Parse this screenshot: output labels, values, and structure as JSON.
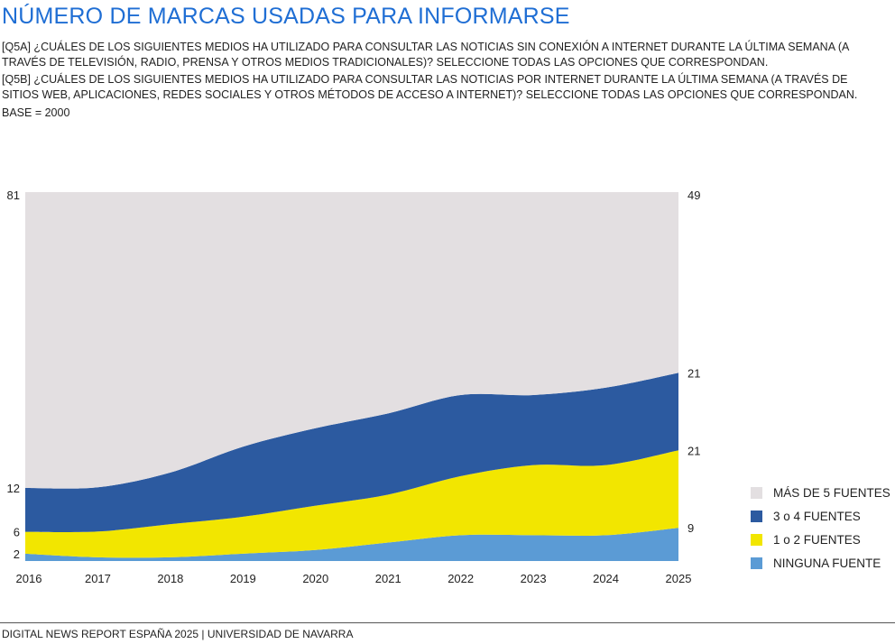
{
  "title": "NÚMERO DE MARCAS USADAS PARA INFORMARSE",
  "questions": [
    "[Q5A] ¿CUÁLES DE LOS SIGUIENTES MEDIOS HA UTILIZADO PARA CONSULTAR LAS NOTICIAS SIN CONEXIÓN A INTERNET DURANTE LA ÚLTIMA SEMANA (A TRAVÉS DE TELEVISIÓN, RADIO, PRENSA Y OTROS MEDIOS TRADICIONALES)? SELECCIONE TODAS LAS OPCIONES QUE CORRESPONDAN.",
    "[Q5B] ¿CUÁLES DE LOS SIGUIENTES MEDIOS HA UTILIZADO PARA CONSULTAR LAS NOTICIAS POR INTERNET DURANTE LA ÚLTIMA SEMANA (A TRAVÉS DE SITIOS WEB, APLICACIONES, REDES SOCIALES Y OTROS MÉTODOS DE ACCESO A INTERNET)? SELECCIONE TODAS LAS OPCIONES QUE CORRESPONDAN."
  ],
  "base": "BASE = 2000",
  "footer": "DIGITAL NEWS REPORT ESPAÑA 2025 | UNIVERSIDAD DE NAVARRA",
  "chart_data": {
    "type": "area",
    "stacked": true,
    "normalized_percent": true,
    "x": [
      "2016",
      "2017",
      "2018",
      "2019",
      "2020",
      "2021",
      "2022",
      "2023",
      "2024",
      "2025"
    ],
    "series": [
      {
        "name": "NINGUNA FUENTE",
        "color": "#5b9bd5",
        "values": [
          2,
          1,
          1,
          2,
          3,
          5,
          7,
          7,
          7,
          9
        ]
      },
      {
        "name": "1 o 2 FUENTES",
        "color": "#f2e600",
        "values": [
          6,
          7,
          9,
          10,
          12,
          13,
          16,
          19,
          19,
          21
        ]
      },
      {
        "name": "3 o 4 FUENTES",
        "color": "#2c5aa0",
        "values": [
          12,
          12,
          14,
          19,
          21,
          22,
          22,
          19,
          21,
          21
        ]
      },
      {
        "name": "MÁS DE 5 FUENTES",
        "color": "#e3dfe1",
        "values": [
          81,
          80,
          76,
          69,
          64,
          60,
          55,
          55,
          53,
          49
        ]
      }
    ],
    "start_labels": [
      "2",
      "6",
      "12",
      "81"
    ],
    "end_labels": [
      "9",
      "21",
      "21",
      "49"
    ],
    "ylim": [
      0,
      100
    ],
    "grid": false,
    "legend": "right"
  }
}
